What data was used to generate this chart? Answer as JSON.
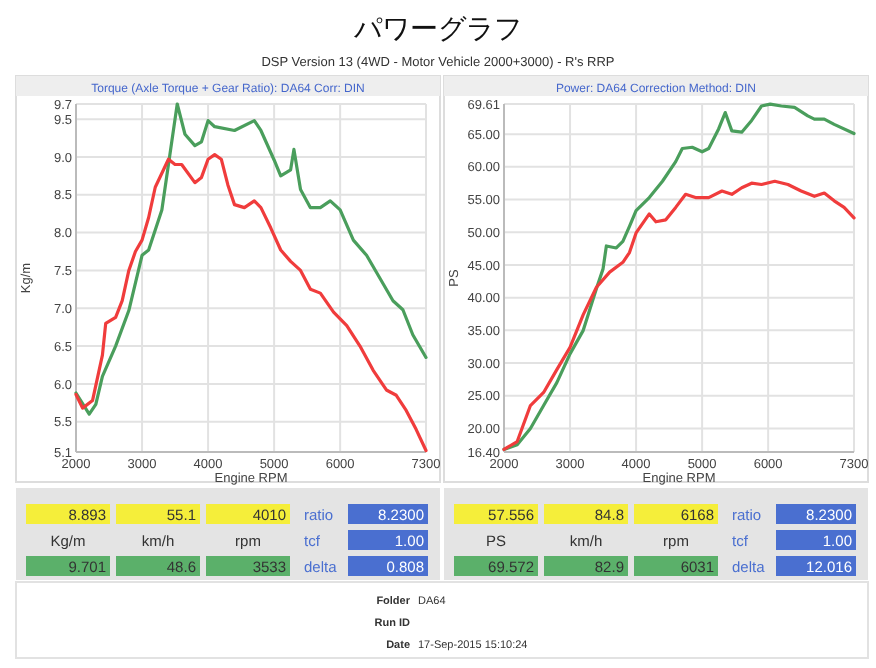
{
  "chart_data": [
    {
      "type": "line",
      "title": "パワーグラフ",
      "subtitle": "DSP Version 13 (4WD - Motor Vehicle 2000+3000) - R's RRP",
      "xlabel": "Engine RPM",
      "ylabel": "Kg/m",
      "grid": true,
      "xlim": [
        2000,
        7300
      ],
      "xticks": [
        2000,
        3000,
        4000,
        5000,
        6000,
        7300
      ],
      "ylim": [
        5.1,
        9.7
      ],
      "yticks": [
        5.1,
        5.5,
        {
          "value": 6,
          "label": "6.0"
        },
        6.5,
        {
          "value": 7,
          "label": "7.0"
        },
        7.5,
        {
          "value": 8,
          "label": "8.0"
        },
        8.5,
        {
          "value": 9,
          "label": "9.0"
        },
        9.5,
        9.7
      ],
      "series": [
        {
          "color": "#4a9e5c",
          "x": [
            2000,
            2200,
            2300,
            2400,
            2600,
            2800,
            3000,
            3100,
            3300,
            3450,
            3533,
            3650,
            3800,
            3900,
            4000,
            4100,
            4400,
            4700,
            4800,
            5000,
            5100,
            5250,
            5300,
            5400,
            5550,
            5700,
            5850,
            6000,
            6200,
            6400,
            6600,
            6800,
            6950,
            7100,
            7300
          ],
          "values": [
            5.88,
            5.6,
            5.73,
            6.1,
            6.5,
            6.97,
            7.7,
            7.77,
            8.3,
            9.2,
            9.7,
            9.3,
            9.15,
            9.2,
            9.48,
            9.4,
            9.35,
            9.48,
            9.35,
            8.96,
            8.75,
            8.83,
            9.1,
            8.57,
            8.33,
            8.33,
            8.42,
            8.3,
            7.9,
            7.7,
            7.4,
            7.1,
            6.98,
            6.65,
            6.35
          ]
        },
        {
          "color": "#f03c3c",
          "x": [
            2000,
            2100,
            2250,
            2400,
            2450,
            2600,
            2700,
            2800,
            2900,
            3000,
            3100,
            3200,
            3400,
            3500,
            3600,
            3800,
            3900,
            4000,
            4100,
            4200,
            4300,
            4400,
            4550,
            4700,
            4800,
            4950,
            5100,
            5250,
            5400,
            5550,
            5700,
            5900,
            6100,
            6300,
            6500,
            6700,
            6850,
            7000,
            7150,
            7300
          ],
          "values": [
            5.86,
            5.68,
            5.78,
            6.38,
            6.8,
            6.88,
            7.1,
            7.5,
            7.75,
            7.9,
            8.2,
            8.6,
            8.97,
            8.9,
            8.9,
            8.66,
            8.73,
            8.97,
            9.03,
            8.97,
            8.63,
            8.37,
            8.33,
            8.42,
            8.33,
            8.06,
            7.77,
            7.62,
            7.5,
            7.25,
            7.2,
            6.95,
            6.77,
            6.5,
            6.18,
            5.92,
            5.85,
            5.65,
            5.4,
            5.12
          ]
        }
      ],
      "annotations": [
        "Torque (Axle Torque + Gear Ratio): DA64     Corr: DIN",
        "8.893",
        "55.1",
        "4010",
        "ratio",
        "8.2300",
        "Kg/m",
        "km/h",
        "rpm",
        "tcf",
        "1.00",
        "9.701",
        "48.6",
        "3533",
        "delta",
        "0.808",
        "Folder",
        "DA64",
        "Run ID",
        "Date",
        "17-Sep-2015 15:10:24"
      ]
    },
    {
      "type": "line",
      "xlabel": "Engine RPM",
      "ylabel": "PS",
      "grid": true,
      "xlim": [
        2000,
        7300
      ],
      "xticks": [
        2000,
        3000,
        4000,
        5000,
        6000,
        7300
      ],
      "ylim": [
        16.4,
        69.61
      ],
      "yticks": [
        {
          "value": 16.4,
          "label": "16.40"
        },
        {
          "value": 20,
          "label": "20.00"
        },
        {
          "value": 25,
          "label": "25.00"
        },
        {
          "value": 30,
          "label": "30.00"
        },
        {
          "value": 35,
          "label": "35.00"
        },
        {
          "value": 40,
          "label": "40.00"
        },
        {
          "value": 45,
          "label": "45.00"
        },
        {
          "value": 50,
          "label": "50.00"
        },
        {
          "value": 55,
          "label": "55.00"
        },
        {
          "value": 60,
          "label": "60.00"
        },
        {
          "value": 65,
          "label": "65.00"
        },
        69.61
      ],
      "series": [
        {
          "color": "#4a9e5c",
          "x": [
            2000,
            2200,
            2400,
            2600,
            2800,
            3000,
            3200,
            3400,
            3500,
            3550,
            3700,
            3800,
            3900,
            4000,
            4200,
            4400,
            4600,
            4700,
            4850,
            5000,
            5100,
            5250,
            5350,
            5450,
            5600,
            5750,
            5900,
            6031,
            6200,
            6400,
            6600,
            6700,
            6850,
            7000,
            7300
          ],
          "values": [
            16.8,
            17.5,
            20,
            23.5,
            27,
            31.4,
            35,
            41.4,
            44.4,
            47.9,
            47.6,
            48.6,
            50.9,
            53.3,
            55.3,
            57.8,
            60.8,
            62.8,
            63,
            62.3,
            62.8,
            65.8,
            68.3,
            65.5,
            65.3,
            67.1,
            69.3,
            69.6,
            69.3,
            69.1,
            67.8,
            67.3,
            67.3,
            66.5,
            65.1
          ]
        },
        {
          "color": "#f03c3c",
          "x": [
            2000,
            2200,
            2400,
            2600,
            2800,
            3000,
            3200,
            3400,
            3600,
            3800,
            3900,
            4000,
            4200,
            4300,
            4450,
            4600,
            4750,
            4900,
            5100,
            5300,
            5450,
            5600,
            5750,
            5900,
            6100,
            6300,
            6500,
            6700,
            6850,
            7000,
            7150,
            7300
          ],
          "values": [
            16.8,
            18,
            23.5,
            25.5,
            29,
            32.4,
            37.4,
            41.6,
            43.9,
            45.4,
            46.9,
            49.9,
            52.8,
            51.6,
            51.9,
            53.8,
            55.8,
            55.3,
            55.3,
            56.3,
            55.8,
            56.8,
            57.5,
            57.3,
            57.8,
            57.3,
            56.3,
            55.5,
            56,
            54.8,
            53.8,
            52.2
          ]
        }
      ],
      "annotations": [
        "Power: DA64     Correction Method: DIN",
        "57.556",
        "84.8",
        "6168",
        "ratio",
        "8.2300",
        "PS",
        "km/h",
        "rpm",
        "tcf",
        "1.00",
        "69.572",
        "82.9",
        "6031",
        "delta",
        "12.016"
      ]
    }
  ]
}
